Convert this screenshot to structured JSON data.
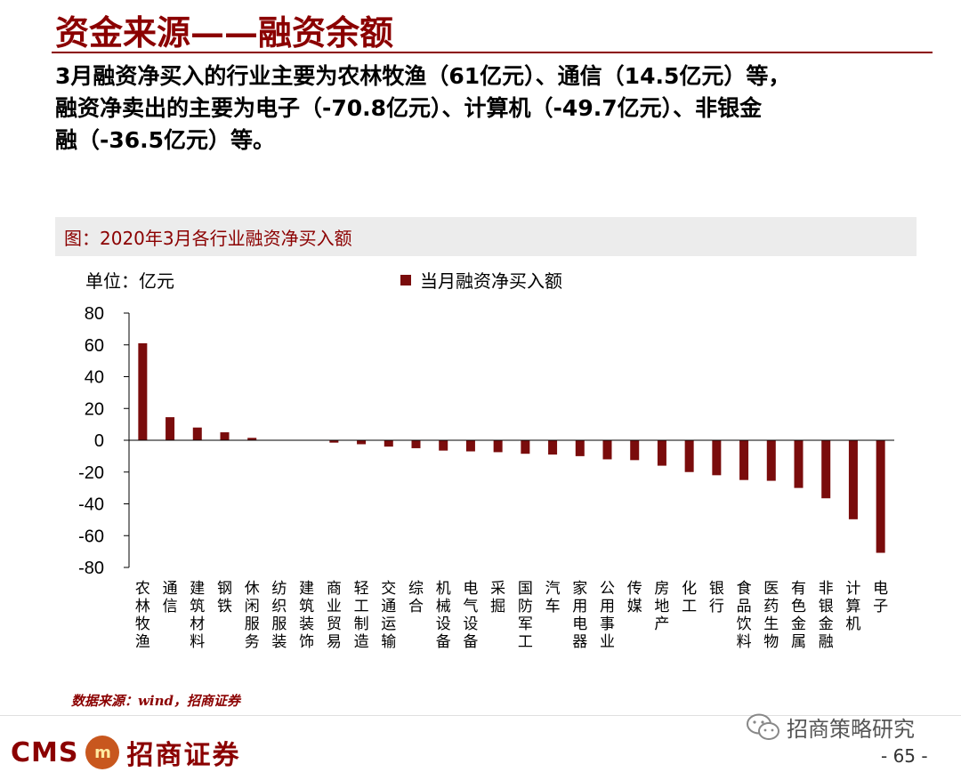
{
  "page": {
    "title": "资金来源——融资余额",
    "intro_lines": [
      "3月融资净买入的行业主要为农林牧渔（61亿元）、通信（14.5亿元）等，",
      "融资净卖出的主要为电子（-70.8亿元）、计算机（-49.7亿元）、非银金",
      "融（-36.5亿元）等。"
    ],
    "source": "数据来源：wind，招商证券",
    "logo_latin": "CMS",
    "logo_mark": "m",
    "logo_cn": "招商证券",
    "wechat_account": "招商策略研究",
    "page_number": "- 65 -"
  },
  "chart_data": {
    "type": "bar",
    "title": "图：2020年3月各行业融资净买入额",
    "unit_label": "单位：亿元",
    "legend": [
      "当月融资净买入额"
    ],
    "xlabel": "",
    "ylabel": "",
    "ylim": [
      -80,
      80
    ],
    "yticks": [
      80,
      60,
      40,
      20,
      0,
      -20,
      -40,
      -60,
      -80
    ],
    "bar_color": "#7a0c0c",
    "categories": [
      "农林牧渔",
      "通信",
      "建筑材料",
      "钢铁",
      "休闲服务",
      "纺织服装",
      "建筑装饰",
      "商业贸易",
      "轻工制造",
      "交通运输",
      "综合",
      "机械设备",
      "电气设备",
      "采掘",
      "国防军工",
      "汽车",
      "家用电器",
      "公用事业",
      "传媒",
      "房地产",
      "化工",
      "银行",
      "食品饮料",
      "医药生物",
      "有色金属",
      "非银金融",
      "计算机",
      "电子"
    ],
    "series": [
      {
        "name": "当月融资净买入额",
        "values": [
          61,
          14.5,
          8,
          5,
          1.5,
          0,
          0,
          -1.5,
          -2.5,
          -4,
          -5,
          -6.5,
          -7,
          -7.5,
          -8.5,
          -9,
          -10,
          -12,
          -12.5,
          -16,
          -20,
          -22,
          -25,
          -25.5,
          -30,
          -36.5,
          -49.7,
          -70.8
        ]
      }
    ]
  }
}
